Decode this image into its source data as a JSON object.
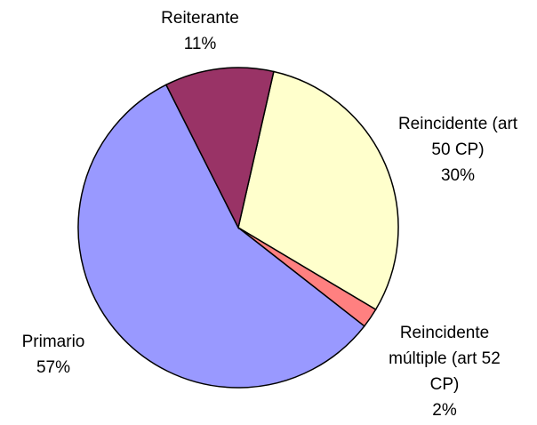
{
  "chart_data": {
    "type": "pie",
    "categories": [
      "Reincidente (art 50 CP)",
      "Reincidente múltiple (art 52 CP)",
      "Primario",
      "Reiterante"
    ],
    "values": [
      30,
      2,
      57,
      11
    ],
    "value_labels": [
      "30%",
      "2%",
      "57%",
      "11%"
    ],
    "colors": [
      "#ffffcc",
      "#ff8080",
      "#9999ff",
      "#993366"
    ]
  }
}
